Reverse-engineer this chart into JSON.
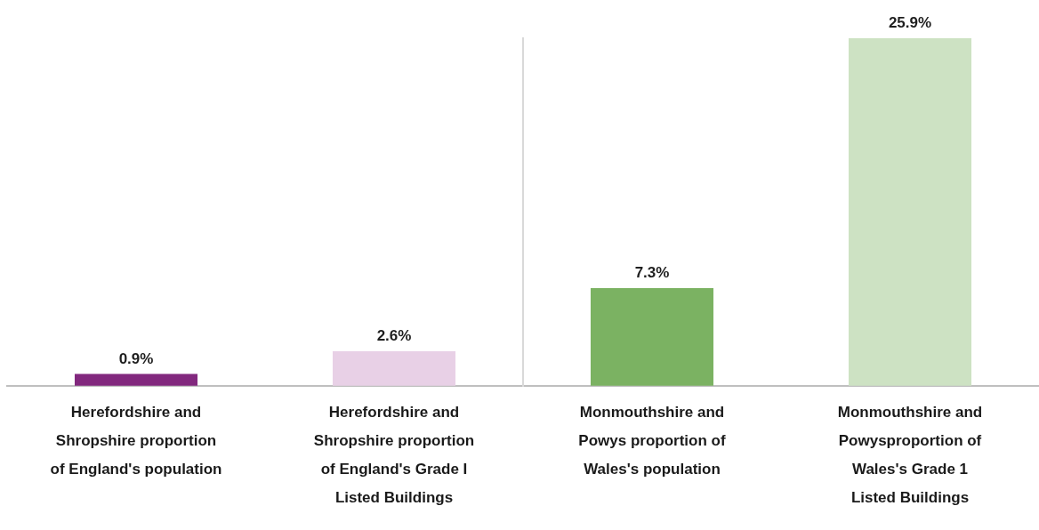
{
  "chart_data": {
    "type": "bar",
    "categories": [
      "Herefordshire and\nShropshire proportion\nof England's population",
      "Herefordshire and\nShropshire proportion\nof England's Grade I\nListed Buildings",
      "Monmouthshire and\nPowys proportion of\nWales's population",
      "Monmouthshire and\nPowysproportion of\nWales's Grade 1\nListed Buildings"
    ],
    "values": [
      0.9,
      2.6,
      7.3,
      25.9
    ],
    "colors": [
      "#82287e",
      "#e8d0e6",
      "#7bb262",
      "#cde2c3"
    ],
    "value_labels": [
      "0.9%",
      "2.6%",
      "7.3%",
      "25.9%"
    ],
    "tick_labels": "x"
  }
}
